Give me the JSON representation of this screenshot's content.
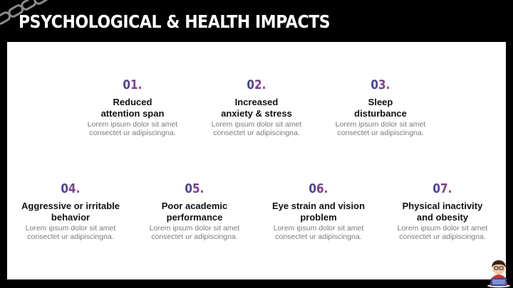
{
  "title": "PSYCHOLOGICAL & HEALTH IMPACTS",
  "items": [
    {
      "number": "01.",
      "heading": "Reduced\nattention span",
      "description": "Lorem ipsum dolor sit amet\nconsectet ur adipiscingna."
    },
    {
      "number": "02.",
      "heading": "Increased\nanxiety & stress",
      "description": "Lorem ipsum dolor sit amet\nconsectet ur adipiscingna."
    },
    {
      "number": "03.",
      "heading": "Sleep\ndisturbance",
      "description": "Lorem ipsum dolor sit amet\nconsectet ur adipiscingna."
    },
    {
      "number": "04.",
      "heading": "Aggressive or irritable\nbehavior",
      "description": "Lorem ipsum dolor sit amet\nconsectet ur adipiscingna."
    },
    {
      "number": "05.",
      "heading": "Poor academic\nperformance",
      "description": "Lorem ipsum dolor sit amet\nconsectet ur adipiscingna."
    },
    {
      "number": "06.",
      "heading": "Eye strain and vision\nproblem",
      "description": "Lorem ipsum dolor sit amet\nconsectet ur adipiscingna."
    },
    {
      "number": "07.",
      "heading": "Physical inactivity\nand obesity",
      "description": "Lorem ipsum dolor sit amet\nconsectet ur adipiscingna."
    }
  ],
  "icons": {
    "decoration": "chain-icon",
    "character": "person-with-laptop-icon"
  },
  "colors": {
    "background": "#000000",
    "panel": "#ffffff",
    "number_gradient_start": "#3b3f9e",
    "number_gradient_end": "#a1447f"
  }
}
